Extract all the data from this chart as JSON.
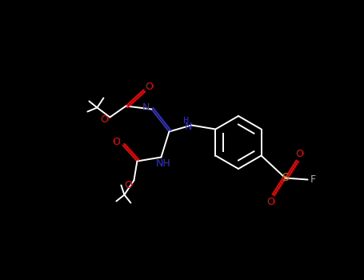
{
  "background_color": "#000000",
  "bond_color": "#ffffff",
  "atom_colors": {
    "N": "#3333bb",
    "O": "#ff0000",
    "S": "#888820",
    "F": "#aaaaaa",
    "C": "#ffffff"
  },
  "figsize": [
    4.55,
    3.5
  ],
  "dpi": 100
}
